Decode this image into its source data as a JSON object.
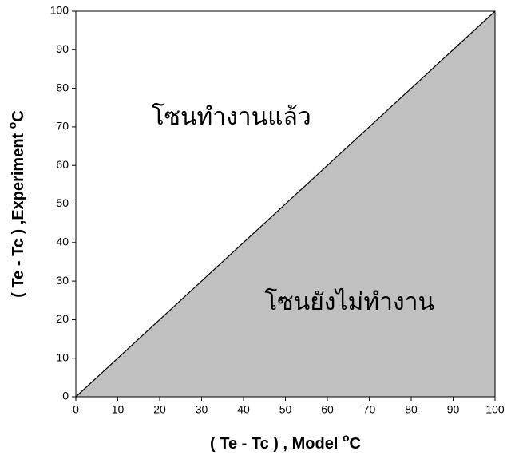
{
  "chart_data": {
    "type": "area",
    "x": [
      0,
      100
    ],
    "values": [
      0,
      100
    ],
    "color": "#000000",
    "fill": "#c0c0c0",
    "xlim": [
      0,
      100
    ],
    "ylim": [
      0,
      100
    ],
    "xticks": [
      0,
      10,
      20,
      30,
      40,
      50,
      60,
      70,
      80,
      90,
      100
    ],
    "yticks": [
      0,
      10,
      20,
      30,
      40,
      50,
      60,
      70,
      80,
      90,
      100
    ],
    "x_label": "( Te - Tc ) , Model ",
    "y_label": "( Te - Tc ) ,Experiment ",
    "unit_sup": "o",
    "unit": "C",
    "annotations": [
      "โซนทำงานแล้ว",
      "โซนยังไม่ทำงาน"
    ]
  }
}
